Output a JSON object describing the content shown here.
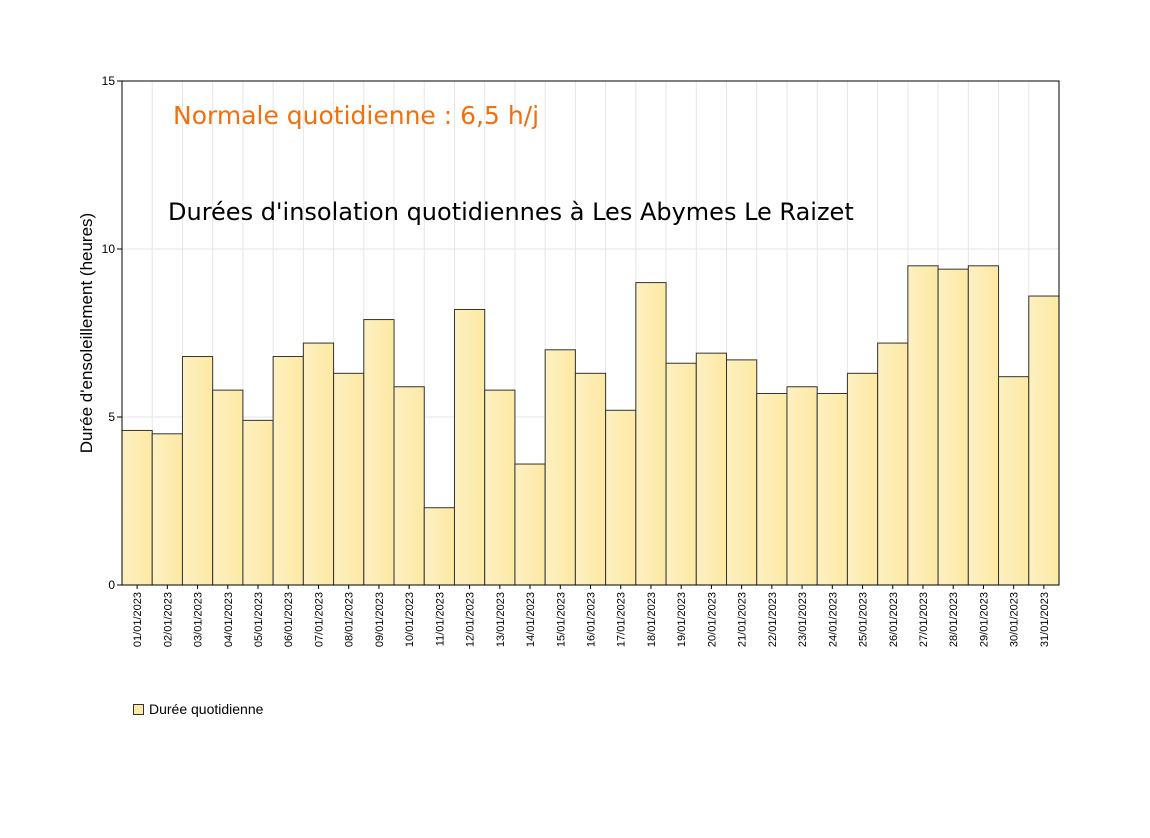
{
  "chart_data": {
    "type": "bar",
    "title": "Durées d'insolation quotidiennes à Les Abymes Le Raizet",
    "annotation": "Normale quotidienne : 6,5 h/j",
    "xlabel": "",
    "ylabel": "Durée d'ensoleillement (heures)",
    "ylim": [
      0,
      15
    ],
    "yticks": [
      "0",
      "5",
      "10",
      "15"
    ],
    "grid": true,
    "categories": [
      "01/01/2023",
      "02/01/2023",
      "03/01/2023",
      "04/01/2023",
      "05/01/2023",
      "06/01/2023",
      "07/01/2023",
      "08/01/2023",
      "09/01/2023",
      "10/01/2023",
      "11/01/2023",
      "12/01/2023",
      "13/01/2023",
      "14/01/2023",
      "15/01/2023",
      "16/01/2023",
      "17/01/2023",
      "18/01/2023",
      "19/01/2023",
      "20/01/2023",
      "21/01/2023",
      "22/01/2023",
      "23/01/2023",
      "24/01/2023",
      "25/01/2023",
      "26/01/2023",
      "27/01/2023",
      "28/01/2023",
      "29/01/2023",
      "30/01/2023",
      "31/01/2023"
    ],
    "series": [
      {
        "name": "Durée quotidienne",
        "values": [
          4.6,
          4.5,
          6.8,
          5.8,
          4.9,
          6.8,
          7.2,
          6.3,
          7.9,
          5.9,
          2.3,
          8.2,
          5.8,
          3.6,
          7.0,
          6.3,
          5.2,
          9.0,
          6.6,
          6.9,
          6.7,
          5.7,
          5.9,
          5.7,
          6.3,
          7.2,
          9.5,
          9.4,
          9.5,
          6.2,
          8.6
        ]
      }
    ],
    "legend_position": "bottom-left",
    "colors": {
      "bar_light": "#fdf0c2",
      "bar_dark": "#fde9a3",
      "bar_stroke": "#333333",
      "annotation": "#f07010",
      "grid": "#e6e6e6"
    }
  }
}
